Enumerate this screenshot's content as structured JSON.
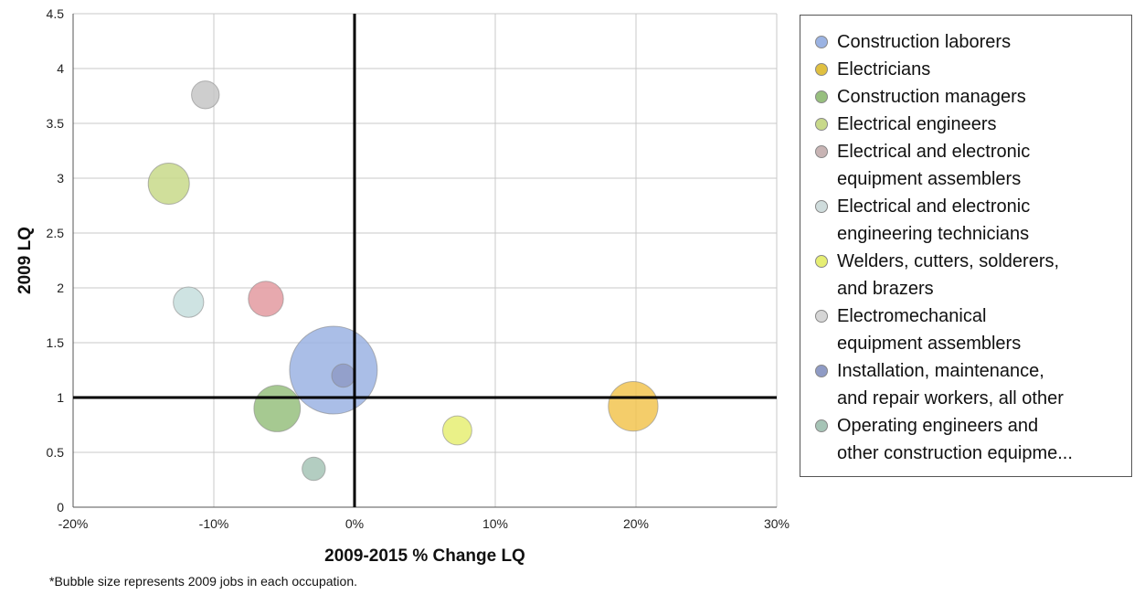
{
  "chart_data": {
    "type": "scatter",
    "title": "",
    "xlabel": "2009-2015 % Change LQ",
    "ylabel": "2009 LQ",
    "xlim": [
      -20,
      30
    ],
    "ylim": [
      0,
      4.5
    ],
    "x_ticks": [
      -20,
      -10,
      0,
      10,
      20,
      30
    ],
    "x_tick_labels": [
      "-20%",
      "-10%",
      "0%",
      "10%",
      "20%",
      "30%"
    ],
    "y_ticks": [
      0,
      0.5,
      1,
      1.5,
      2,
      2.5,
      3,
      3.5,
      4,
      4.5
    ],
    "y_tick_labels": [
      "0",
      "0.5",
      "1",
      "1.5",
      "2",
      "2.5",
      "3",
      "3.5",
      "4",
      "4.5"
    ],
    "grid": true,
    "reference_lines": {
      "x": 0,
      "y": 1
    },
    "legend_position": "right",
    "bubble_size_meaning": "2009 jobs",
    "series": [
      {
        "name": "Construction laborers",
        "color": "#9bb3e3",
        "x": -1.5,
        "y": 1.25,
        "size": 100
      },
      {
        "name": "Electricians",
        "color": "#f2c450",
        "x": 19.8,
        "y": 0.92,
        "size": 32
      },
      {
        "name": "Construction managers",
        "color": "#97bf7e",
        "x": -5.5,
        "y": 0.9,
        "size": 28
      },
      {
        "name": "Electrical engineers",
        "color": "#c8d98a",
        "x": -13.2,
        "y": 2.95,
        "size": 22
      },
      {
        "name": "Electrical and electronic equipment assemblers",
        "color": "#e39aa0",
        "x": -6.3,
        "y": 1.9,
        "size": 16
      },
      {
        "name": "Electrical and electronic engineering technicians",
        "color": "#c5dedd",
        "x": -11.8,
        "y": 1.87,
        "size": 12
      },
      {
        "name": "Welders, cutters, solderers, and brazers",
        "color": "#e6ee73",
        "x": 7.3,
        "y": 0.7,
        "size": 11
      },
      {
        "name": "Electromechanical equipment assemblers",
        "color": "#c5c5c5",
        "x": -10.6,
        "y": 3.76,
        "size": 10
      },
      {
        "name": "Installation, maintenance, and repair workers, all other",
        "color": "#8f9bc5",
        "x": -0.8,
        "y": 1.2,
        "size": 7
      },
      {
        "name": "Operating engineers and other construction equipme...",
        "color": "#a6c4b6",
        "x": -2.9,
        "y": 0.35,
        "size": 7
      }
    ]
  },
  "legend": {
    "items": [
      {
        "lines": [
          "Construction laborers"
        ],
        "color": "#9bb3e3"
      },
      {
        "lines": [
          "Electricians"
        ],
        "color": "#e0c040"
      },
      {
        "lines": [
          "Construction managers"
        ],
        "color": "#97bf7e"
      },
      {
        "lines": [
          "Electrical engineers"
        ],
        "color": "#c8d98a"
      },
      {
        "lines": [
          "Electrical and electronic",
          "equipment assemblers"
        ],
        "color": "#c8b4b4"
      },
      {
        "lines": [
          "Electrical and electronic",
          "engineering technicians"
        ],
        "color": "#cfdcdc"
      },
      {
        "lines": [
          "Welders, cutters, solderers,",
          "and brazers"
        ],
        "color": "#e6ee73"
      },
      {
        "lines": [
          "Electromechanical",
          "equipment assemblers"
        ],
        "color": "#d6d6d6"
      },
      {
        "lines": [
          "Installation, maintenance,",
          "and repair workers, all other"
        ],
        "color": "#8f9bc5"
      },
      {
        "lines": [
          "Operating engineers and",
          "other construction equipme..."
        ],
        "color": "#a6c4b6"
      }
    ]
  },
  "footnote": "*Bubble size represents 2009 jobs in each occupation."
}
